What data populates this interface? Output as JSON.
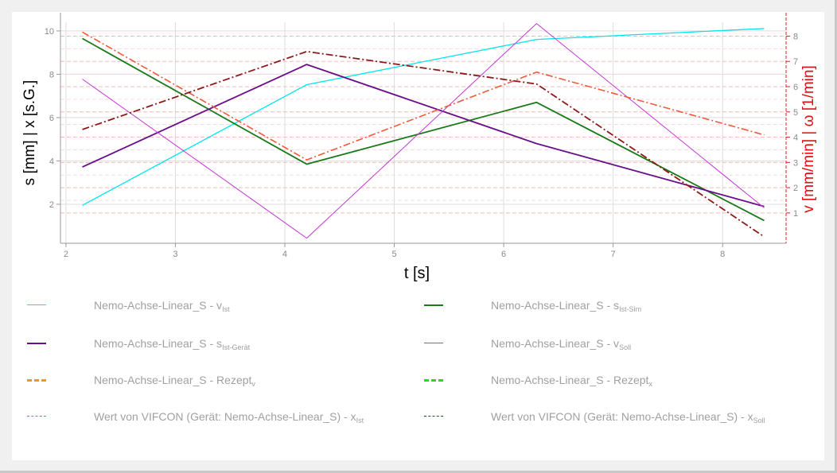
{
  "chart_data": {
    "type": "line",
    "xlabel": "t [s]",
    "ylabel_left": "s [mm] | x [s.G.]",
    "ylabel_right": "v [mm/min] | ω [1/min]",
    "x_ticks": [
      "2",
      "3",
      "4",
      "5",
      "6",
      "7",
      "8"
    ],
    "y_left_ticks": [
      "2",
      "4",
      "6",
      "8",
      "10"
    ],
    "y_right_ticks": [
      "1",
      "2",
      "3",
      "4",
      "5",
      "6",
      "7",
      "8"
    ],
    "xlim": [
      1.95,
      8.58
    ],
    "ylim_left": [
      0.2,
      10.4
    ],
    "ylim_right": [
      -0.2,
      8.55
    ],
    "grid": true,
    "legend_position": "below",
    "series": [
      {
        "name": "Nemo-Achse-Linear_S - v",
        "sub": "Ist",
        "axis": "right",
        "color": "#00e5ee",
        "style": "solid",
        "width": 1.3,
        "x": [
          2.15,
          4.2,
          6.3,
          8.38
        ],
        "y": [
          1.3,
          6.08,
          7.87,
          8.3
        ]
      },
      {
        "name": "Nemo-Achse-Linear_S - s",
        "sub": "Ist-Sim",
        "axis": "left",
        "color": "#1a7a1a",
        "style": "solid",
        "width": 1.8,
        "x": [
          2.15,
          4.2,
          6.3,
          8.38
        ],
        "y": [
          9.65,
          3.85,
          6.7,
          1.25
        ]
      },
      {
        "name": "Nemo-Achse-Linear_S - s",
        "sub": "Ist-Gerät",
        "axis": "left",
        "color": "#6a0f8a",
        "style": "solid",
        "width": 1.8,
        "x": [
          2.15,
          4.2,
          6.3,
          8.38
        ],
        "y": [
          3.72,
          8.45,
          4.8,
          1.9
        ]
      },
      {
        "name": "Nemo-Achse-Linear_S - v",
        "sub": "Soll",
        "axis": "right",
        "color": "#c238d2",
        "style": "solid",
        "width": 1.0,
        "x": [
          2.15,
          4.2,
          6.3,
          8.38
        ],
        "y": [
          6.3,
          0.0,
          8.5,
          1.2
        ]
      },
      {
        "name": "Nemo-Achse-Linear_S - Rezept",
        "sub": "v",
        "axis": "right",
        "color": "#e89a1a",
        "style": "dashed",
        "width": 2.5,
        "x": [],
        "y": []
      },
      {
        "name": "Nemo-Achse-Linear_S - Rezept",
        "sub": "x",
        "axis": "left",
        "color": "#22dd22",
        "style": "dashed",
        "width": 2.5,
        "x": [],
        "y": []
      },
      {
        "name": "Wert von VIFCON (Gerät: Nemo-Achse-Linear_S) - x",
        "sub": "Ist",
        "axis": "left",
        "color": "#ee5a3a",
        "style": "dashdot",
        "width": 1.6,
        "x": [
          2.15,
          4.2,
          6.3,
          8.38
        ],
        "y": [
          9.95,
          4.05,
          8.1,
          5.2
        ]
      },
      {
        "name": "Wert von VIFCON (Gerät: Nemo-Achse-Linear_S) - x",
        "sub": "Soll",
        "axis": "left",
        "color": "#8b1a1a",
        "style": "dashdot",
        "width": 1.8,
        "x": [
          2.15,
          4.2,
          6.3,
          8.38
        ],
        "y": [
          5.45,
          9.05,
          7.55,
          0.5
        ]
      }
    ]
  }
}
